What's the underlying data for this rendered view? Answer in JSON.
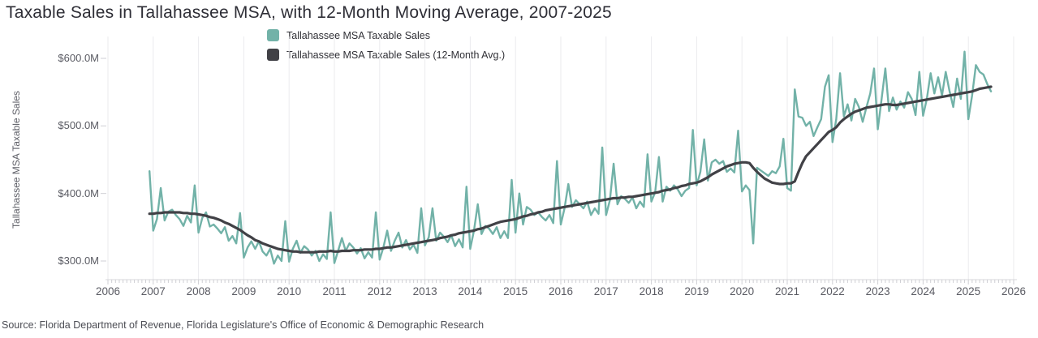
{
  "header": {
    "title": "Taxable Sales in Tallahassee MSA, with 12-Month Moving Average, 2007-2025"
  },
  "legend": {
    "items": [
      {
        "label": "Tallahassee MSA Taxable Sales",
        "color": "#72b2a8"
      },
      {
        "label": "Tallahassee MSA Taxable Sales (12-Month Avg.)",
        "color": "#414146"
      }
    ]
  },
  "axes": {
    "y": {
      "title": "Tallahassee MSA Taxable Sales",
      "tick_labels": [
        "$600.0M",
        "$500.0M",
        "$400.0M",
        "$300.0M"
      ],
      "tick_values": [
        600,
        500,
        400,
        300
      ]
    },
    "x": {
      "tick_labels": [
        "2006",
        "2007",
        "2008",
        "2009",
        "2010",
        "2011",
        "2012",
        "2013",
        "2014",
        "2015",
        "2016",
        "2017",
        "2018",
        "2019",
        "2020",
        "2021",
        "2022",
        "2023",
        "2024",
        "2025",
        "2026"
      ]
    }
  },
  "footer": {
    "source": "Source: Florida Department of Revenue, Florida Legislature's Office of Economic & Demographic Research"
  },
  "chart_data": {
    "type": "line",
    "title": "Taxable Sales in Tallahassee MSA, with 12-Month Moving Average, 2007-2025",
    "xlabel": "",
    "ylabel": "Tallahassee MSA Taxable Sales ($M)",
    "x_start": "2006-12",
    "x_end": "2025-07",
    "x_frequency": "monthly",
    "xlim": [
      2006,
      2026.2
    ],
    "ylim": [
      272,
      632
    ],
    "y_ticks": [
      300,
      400,
      500,
      600
    ],
    "grid": "vertical-year-lines",
    "legend_position": "top",
    "series": [
      {
        "name": "Tallahassee MSA Taxable Sales",
        "color": "#72b2a8",
        "values": [
          433,
          345,
          362,
          408,
          360,
          373,
          376,
          368,
          362,
          352,
          367,
          357,
          412,
          342,
          364,
          372,
          351,
          354,
          348,
          341,
          350,
          330,
          337,
          326,
          371,
          305,
          320,
          329,
          318,
          329,
          314,
          308,
          318,
          296,
          308,
          300,
          359,
          299,
          318,
          330,
          312,
          322,
          317,
          308,
          315,
          300,
          310,
          303,
          372,
          297,
          315,
          334,
          315,
          326,
          320,
          311,
          319,
          304,
          313,
          305,
          372,
          302,
          320,
          345,
          315,
          330,
          342,
          320,
          331,
          317,
          324,
          312,
          378,
          323,
          335,
          378,
          330,
          342,
          336,
          328,
          338,
          322,
          332,
          320,
          410,
          318,
          345,
          384,
          340,
          352,
          348,
          340,
          350,
          334,
          344,
          334,
          420,
          342,
          400,
          354,
          380,
          376,
          368,
          372,
          365,
          360,
          368,
          356,
          448,
          354,
          378,
          414,
          380,
          390,
          384,
          378,
          388,
          368,
          378,
          370,
          468,
          368,
          390,
          444,
          384,
          396,
          392,
          386,
          394,
          378,
          388,
          380,
          458,
          388,
          402,
          454,
          388,
          410,
          404,
          412,
          406,
          396,
          404,
          408,
          494,
          412,
          432,
          480,
          419,
          446,
          450,
          444,
          448,
          432,
          437,
          431,
          493,
          403,
          412,
          405,
          326,
          438,
          434,
          430,
          426,
          433,
          430,
          440,
          481,
          408,
          404,
          554,
          514,
          512,
          500,
          506,
          485,
          498,
          510,
          558,
          575,
          476,
          510,
          578,
          514,
          532,
          508,
          540,
          528,
          506,
          528,
          548,
          585,
          495,
          540,
          585,
          522,
          542,
          524,
          536,
          527,
          550,
          540,
          516,
          580,
          515,
          540,
          578,
          548,
          572,
          545,
          580,
          552,
          528,
          570,
          540,
          610,
          510,
          545,
          590,
          580,
          576,
          562,
          551
        ]
      },
      {
        "name": "Tallahassee MSA Taxable Sales (12-Month Avg.)",
        "color": "#414146",
        "values": [
          370,
          370,
          371,
          371,
          372,
          372,
          372,
          372,
          372,
          371,
          371,
          370,
          370,
          369,
          368,
          367,
          365,
          364,
          362,
          360,
          357,
          355,
          352,
          349,
          346,
          342,
          338,
          335,
          331,
          329,
          326,
          324,
          322,
          320,
          318,
          317,
          316,
          315,
          314,
          314,
          313,
          313,
          313,
          313,
          313,
          314,
          314,
          314,
          315,
          314,
          314,
          315,
          315,
          315,
          316,
          316,
          316,
          317,
          317,
          317,
          318,
          318,
          319,
          320,
          320,
          321,
          322,
          323,
          324,
          325,
          326,
          327,
          328,
          329,
          330,
          331,
          332,
          334,
          335,
          336,
          338,
          339,
          341,
          342,
          343,
          344,
          345,
          347,
          348,
          350,
          352,
          354,
          356,
          358,
          359,
          360,
          361,
          362,
          364,
          366,
          367,
          369,
          370,
          372,
          373,
          375,
          376,
          377,
          378,
          379,
          380,
          381,
          382,
          383,
          384,
          385,
          386,
          387,
          388,
          389,
          390,
          391,
          392,
          393,
          393,
          394,
          394,
          395,
          395,
          396,
          397,
          398,
          399,
          400,
          401,
          402,
          404,
          405,
          406,
          408,
          409,
          411,
          412,
          414,
          415,
          416,
          418,
          421,
          424,
          428,
          431,
          434,
          437,
          440,
          442,
          444,
          445,
          446,
          446,
          445,
          438,
          432,
          427,
          422,
          419,
          416,
          415,
          414,
          414,
          415,
          415,
          418,
          432,
          445,
          455,
          461,
          467,
          473,
          479,
          485,
          491,
          494,
          498,
          505,
          510,
          514,
          518,
          521,
          523,
          525,
          527,
          528,
          529,
          530,
          531,
          532,
          532,
          531,
          531,
          532,
          533,
          534,
          535,
          536,
          537,
          538,
          539,
          540,
          541,
          542,
          543,
          544,
          545,
          546,
          547,
          548,
          549,
          550,
          551,
          553,
          555,
          556,
          557,
          558
        ]
      }
    ]
  }
}
